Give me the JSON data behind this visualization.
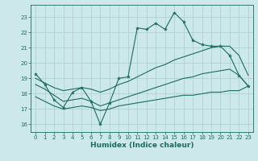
{
  "title": "",
  "xlabel": "Humidex (Indice chaleur)",
  "xlim": [
    -0.5,
    23.5
  ],
  "ylim": [
    15.5,
    23.8
  ],
  "yticks": [
    16,
    17,
    18,
    19,
    20,
    21,
    22,
    23
  ],
  "xticks": [
    0,
    1,
    2,
    3,
    4,
    5,
    6,
    7,
    8,
    9,
    10,
    11,
    12,
    13,
    14,
    15,
    16,
    17,
    18,
    19,
    20,
    21,
    22,
    23
  ],
  "bg_color": "#cde8ea",
  "grid_color": "#a8cdd0",
  "line_color": "#1a6b60",
  "s1_x": [
    0,
    1,
    2,
    3,
    4,
    5,
    6,
    7,
    8,
    9,
    10,
    11,
    12,
    13,
    14,
    15,
    16,
    17,
    18,
    19,
    20,
    21,
    22,
    23
  ],
  "s1_y": [
    19.3,
    18.6,
    17.6,
    17.1,
    18.1,
    18.4,
    17.5,
    16.0,
    17.4,
    19.0,
    19.1,
    22.3,
    22.2,
    22.6,
    22.2,
    23.3,
    22.7,
    21.5,
    21.2,
    21.1,
    21.1,
    20.5,
    19.2,
    18.5
  ],
  "s2_x": [
    0,
    1,
    2,
    3,
    4,
    5,
    6,
    7,
    8,
    9,
    10,
    11,
    12,
    13,
    14,
    15,
    16,
    17,
    18,
    19,
    20,
    21,
    22,
    23
  ],
  "s2_y": [
    19.0,
    18.7,
    18.4,
    18.2,
    18.3,
    18.4,
    18.3,
    18.1,
    18.3,
    18.6,
    18.8,
    19.1,
    19.4,
    19.7,
    19.9,
    20.2,
    20.4,
    20.6,
    20.8,
    21.0,
    21.1,
    21.1,
    20.5,
    19.2
  ],
  "s3_x": [
    0,
    1,
    2,
    3,
    4,
    5,
    6,
    7,
    8,
    9,
    10,
    11,
    12,
    13,
    14,
    15,
    16,
    17,
    18,
    19,
    20,
    21,
    22,
    23
  ],
  "s3_y": [
    18.6,
    18.3,
    17.9,
    17.5,
    17.6,
    17.7,
    17.5,
    17.2,
    17.4,
    17.6,
    17.8,
    18.0,
    18.2,
    18.4,
    18.6,
    18.8,
    19.0,
    19.1,
    19.3,
    19.4,
    19.5,
    19.6,
    19.2,
    18.5
  ],
  "s4_x": [
    0,
    1,
    2,
    3,
    4,
    5,
    6,
    7,
    8,
    9,
    10,
    11,
    12,
    13,
    14,
    15,
    16,
    17,
    18,
    19,
    20,
    21,
    22,
    23
  ],
  "s4_y": [
    17.8,
    17.5,
    17.2,
    17.0,
    17.1,
    17.2,
    17.1,
    16.9,
    17.0,
    17.2,
    17.3,
    17.4,
    17.5,
    17.6,
    17.7,
    17.8,
    17.9,
    17.9,
    18.0,
    18.1,
    18.1,
    18.2,
    18.2,
    18.5
  ]
}
